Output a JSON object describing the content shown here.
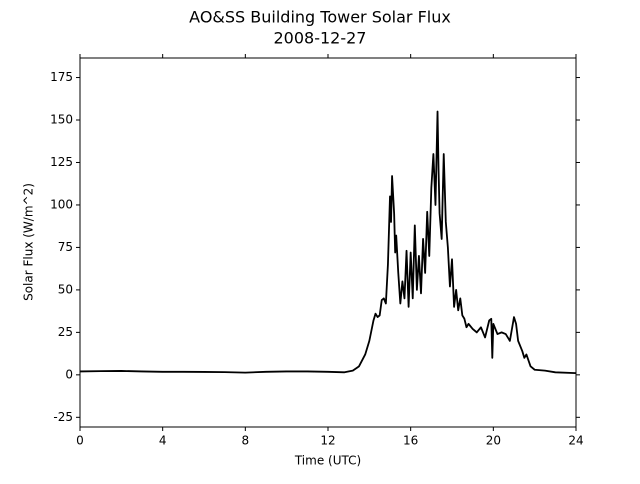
{
  "chart_data": {
    "type": "line",
    "title": "AO&SS Building Tower Solar Flux",
    "subtitle": "2008-12-27",
    "x_label": "Time (UTC)",
    "y_label": "Solar Flux (W/m^2)",
    "xlim": [
      0,
      24
    ],
    "xticks": [
      0,
      4,
      8,
      12,
      16,
      20,
      24
    ],
    "ylim": [
      -30.7,
      186.5
    ],
    "yticks": [
      -25,
      0,
      25,
      50,
      75,
      100,
      125,
      150,
      175
    ],
    "grid": false,
    "series": [
      {
        "color": "#000000",
        "x": [
          0,
          1,
          2,
          3,
          4,
          5,
          6,
          7,
          8,
          9,
          10,
          11,
          12,
          12.8,
          13.2,
          13.5,
          13.8,
          14,
          14.2,
          14.3,
          14.4,
          14.5,
          14.6,
          14.7,
          14.8,
          14.9,
          15.0,
          15.05,
          15.1,
          15.2,
          15.25,
          15.3,
          15.4,
          15.5,
          15.6,
          15.7,
          15.8,
          15.9,
          16.0,
          16.1,
          16.2,
          16.3,
          16.4,
          16.5,
          16.6,
          16.7,
          16.8,
          16.9,
          17.0,
          17.1,
          17.2,
          17.3,
          17.35,
          17.4,
          17.5,
          17.6,
          17.7,
          17.8,
          17.9,
          18.0,
          18.1,
          18.2,
          18.3,
          18.4,
          18.5,
          18.6,
          18.7,
          18.8,
          19.0,
          19.2,
          19.4,
          19.6,
          19.8,
          19.9,
          19.95,
          20.0,
          20.2,
          20.4,
          20.6,
          20.8,
          21.0,
          21.1,
          21.2,
          21.4,
          21.5,
          21.6,
          21.8,
          22.0,
          22.5,
          23,
          24
        ],
        "values": [
          2,
          2.2,
          2.3,
          2,
          1.8,
          1.8,
          1.7,
          1.6,
          1.3,
          1.8,
          2,
          2,
          1.8,
          1.5,
          2.5,
          5,
          12,
          20,
          32,
          36,
          34,
          35,
          44,
          45,
          42,
          65,
          105,
          90,
          117,
          95,
          72,
          82,
          60,
          42,
          55,
          45,
          73,
          40,
          72,
          45,
          88,
          50,
          70,
          48,
          80,
          60,
          96,
          70,
          110,
          130,
          100,
          155,
          120,
          95,
          80,
          130,
          90,
          75,
          52,
          68,
          40,
          50,
          38,
          45,
          35,
          33,
          28,
          30,
          27,
          25,
          28,
          22,
          32,
          33,
          10,
          30,
          24,
          25,
          24,
          20,
          34,
          30,
          20,
          14,
          10,
          12,
          5,
          3,
          2.5,
          1.5,
          1
        ]
      }
    ]
  }
}
